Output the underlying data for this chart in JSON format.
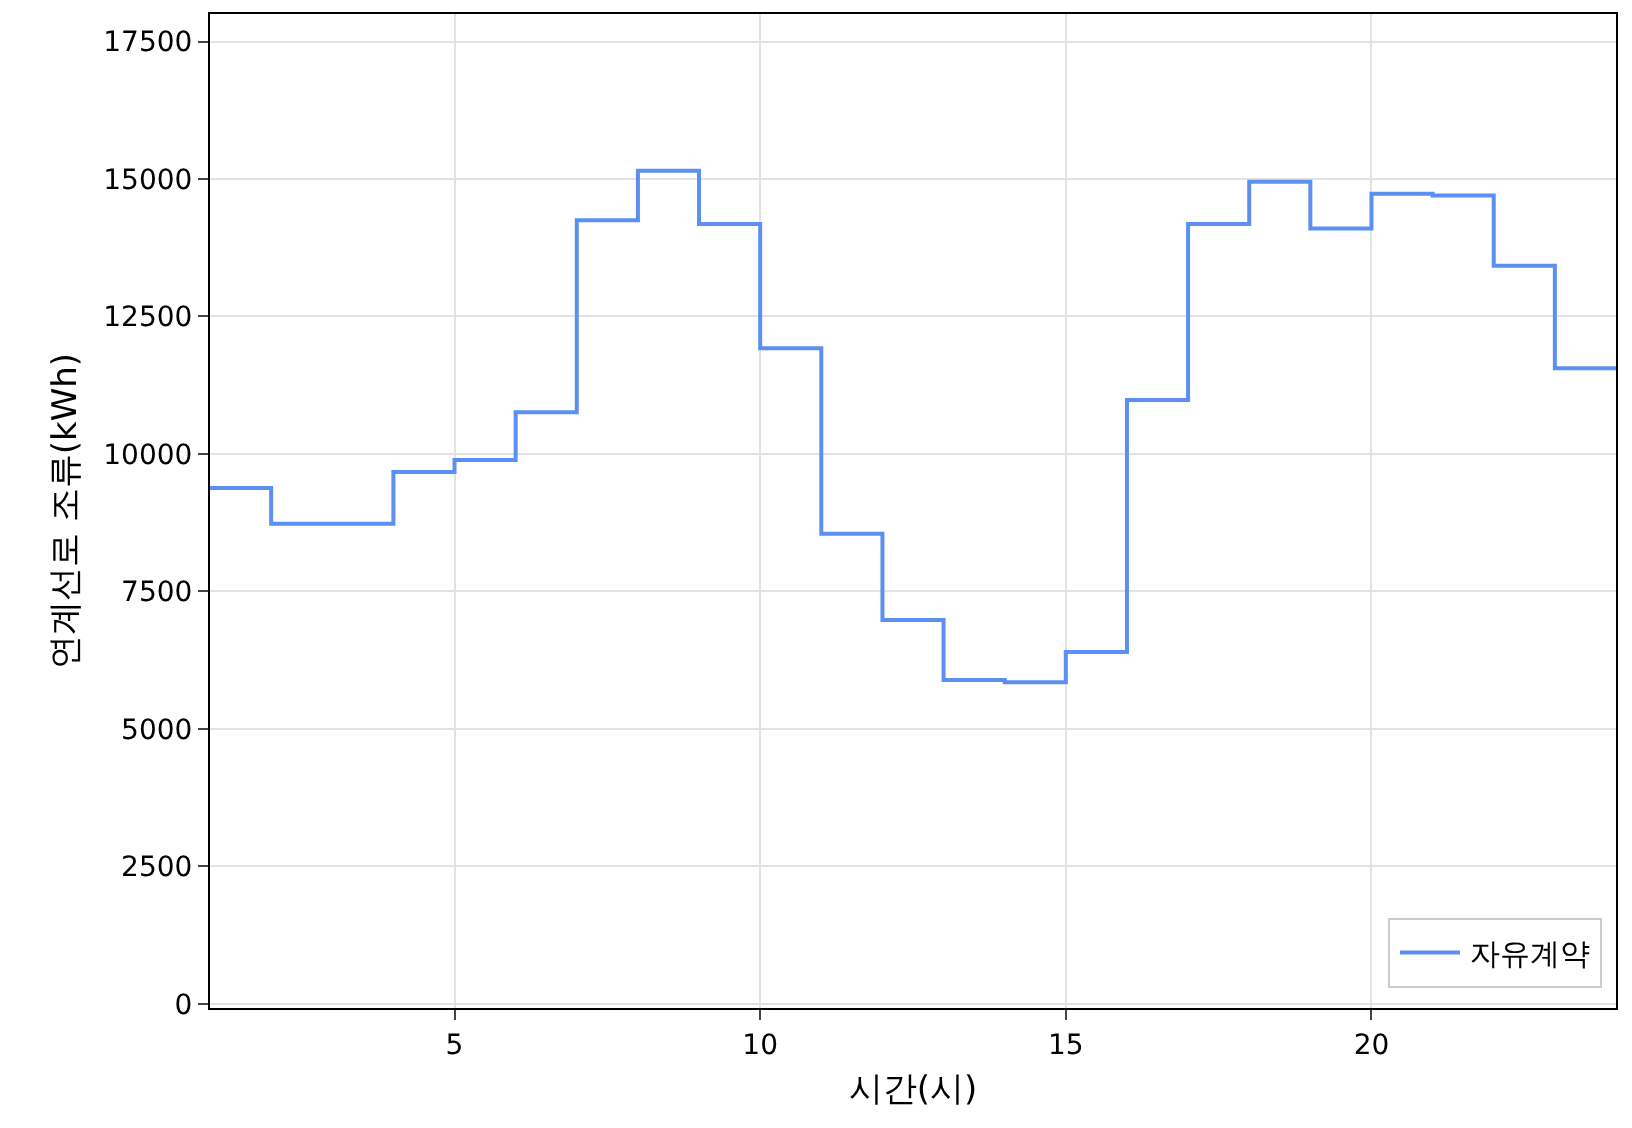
{
  "chart_data": {
    "type": "step",
    "xlabel": "시간(시)",
    "ylabel": "연계선로 조류(kWh)",
    "x": [
      1,
      2,
      3,
      4,
      5,
      6,
      7,
      8,
      9,
      10,
      11,
      12,
      13,
      14,
      15,
      16,
      17,
      18,
      19,
      20,
      21,
      22,
      23,
      24
    ],
    "series": [
      {
        "name": "자유계약",
        "color": "#5b8ff0",
        "values": [
          9380,
          8730,
          8730,
          9670,
          9890,
          10760,
          14250,
          15150,
          14180,
          11920,
          8550,
          6980,
          5890,
          5850,
          6400,
          10980,
          14180,
          14950,
          14100,
          14730,
          14700,
          13420,
          11560,
          11560
        ]
      }
    ],
    "xlim": [
      1,
      24
    ],
    "xticks": [
      5,
      10,
      15,
      20
    ],
    "ylim": [
      -75,
      18000
    ],
    "yticks": [
      0,
      2500,
      5000,
      7500,
      10000,
      12500,
      15000,
      17500
    ],
    "grid": true,
    "legend": "bottom right",
    "line_style": "solid"
  }
}
